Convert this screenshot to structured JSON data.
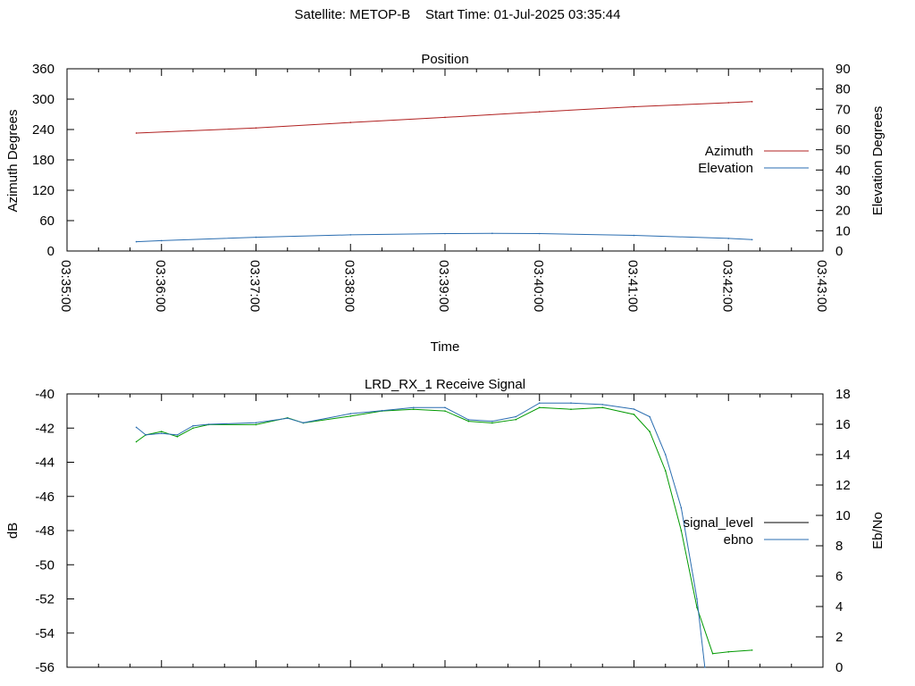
{
  "header": {
    "title": "Satellite: METOP-B    Start Time: 01-Jul-2025 03:35:44"
  },
  "chart_data": [
    {
      "type": "line",
      "title": "Position",
      "xlabel": "Time",
      "ylabel": "Azimuth Degrees",
      "y2label": "Elevation Degrees",
      "xlim": [
        "03:35:00",
        "03:43:00"
      ],
      "x_ticks": [
        "03:35:00",
        "03:36:00",
        "03:37:00",
        "03:38:00",
        "03:39:00",
        "03:40:00",
        "03:41:00",
        "03:42:00",
        "03:43:00"
      ],
      "ylim": [
        0,
        360
      ],
      "y_ticks": [
        "0",
        "60",
        "120",
        "180",
        "240",
        "300",
        "360"
      ],
      "y2lim": [
        0,
        90
      ],
      "y2_ticks": [
        "0",
        "10",
        "20",
        "30",
        "40",
        "50",
        "60",
        "70",
        "80",
        "90"
      ],
      "grid": false,
      "legend": "right",
      "series": [
        {
          "name": "Azimuth",
          "axis": "y1",
          "color": "#b02020",
          "x": [
            "03:35:44",
            "03:37:00",
            "03:38:00",
            "03:39:00",
            "03:40:00",
            "03:41:00",
            "03:42:00",
            "03:42:15"
          ],
          "values": [
            233,
            243,
            254,
            264,
            275,
            285,
            293,
            295
          ]
        },
        {
          "name": "Elevation",
          "axis": "y2",
          "color": "#2a6db0",
          "x": [
            "03:35:44",
            "03:36:00",
            "03:37:00",
            "03:38:00",
            "03:39:00",
            "03:39:30",
            "03:40:00",
            "03:41:00",
            "03:42:00",
            "03:42:15"
          ],
          "values": [
            4.6,
            5.1,
            6.8,
            8.0,
            8.6,
            8.7,
            8.6,
            7.7,
            6.2,
            5.6
          ]
        }
      ]
    },
    {
      "type": "line",
      "title": "LRD_RX_1 Receive Signal",
      "xlabel": "",
      "ylabel": "dB",
      "y2label": "Eb/No",
      "xlim": [
        "03:35:00",
        "03:43:00"
      ],
      "ylim": [
        -56,
        -40
      ],
      "y_ticks": [
        "-56",
        "-54",
        "-52",
        "-50",
        "-48",
        "-46",
        "-44",
        "-42",
        "-40"
      ],
      "y2lim": [
        0,
        18
      ],
      "y2_ticks": [
        "0",
        "2",
        "4",
        "6",
        "8",
        "10",
        "12",
        "14",
        "16",
        "18"
      ],
      "grid": false,
      "legend": "right",
      "series": [
        {
          "name": "signal_level",
          "axis": "y1",
          "color": "#009900",
          "x": [
            "03:35:44",
            "03:35:50",
            "03:36:00",
            "03:36:10",
            "03:36:20",
            "03:36:30",
            "03:37:00",
            "03:37:20",
            "03:37:30",
            "03:38:00",
            "03:38:20",
            "03:38:40",
            "03:39:00",
            "03:39:15",
            "03:39:30",
            "03:39:45",
            "03:40:00",
            "03:40:20",
            "03:40:40",
            "03:41:00",
            "03:41:10",
            "03:41:20",
            "03:41:30",
            "03:41:40",
            "03:41:50",
            "03:42:00",
            "03:42:15"
          ],
          "values": [
            -42.8,
            -42.4,
            -42.2,
            -42.5,
            -42.0,
            -41.8,
            -41.8,
            -41.4,
            -41.7,
            -41.3,
            -41.0,
            -40.9,
            -41.0,
            -41.6,
            -41.7,
            -41.5,
            -40.8,
            -40.9,
            -40.8,
            -41.2,
            -42.2,
            -44.5,
            -48.0,
            -52.5,
            -55.2,
            -55.1,
            -55.0
          ]
        },
        {
          "name": "ebno",
          "axis": "y2",
          "color": "#2a6db0",
          "x": [
            "03:35:44",
            "03:35:50",
            "03:36:00",
            "03:36:10",
            "03:36:20",
            "03:36:30",
            "03:37:00",
            "03:37:20",
            "03:37:30",
            "03:38:00",
            "03:38:20",
            "03:38:40",
            "03:39:00",
            "03:39:15",
            "03:39:30",
            "03:39:45",
            "03:40:00",
            "03:40:20",
            "03:40:40",
            "03:41:00",
            "03:41:10",
            "03:41:20",
            "03:41:30",
            "03:41:40",
            "03:41:45"
          ],
          "values": [
            15.8,
            15.3,
            15.4,
            15.3,
            15.9,
            16.0,
            16.1,
            16.4,
            16.1,
            16.7,
            16.9,
            17.1,
            17.1,
            16.3,
            16.2,
            16.5,
            17.4,
            17.4,
            17.3,
            17.0,
            16.5,
            14.0,
            10.5,
            4.5,
            0
          ]
        }
      ]
    }
  ]
}
